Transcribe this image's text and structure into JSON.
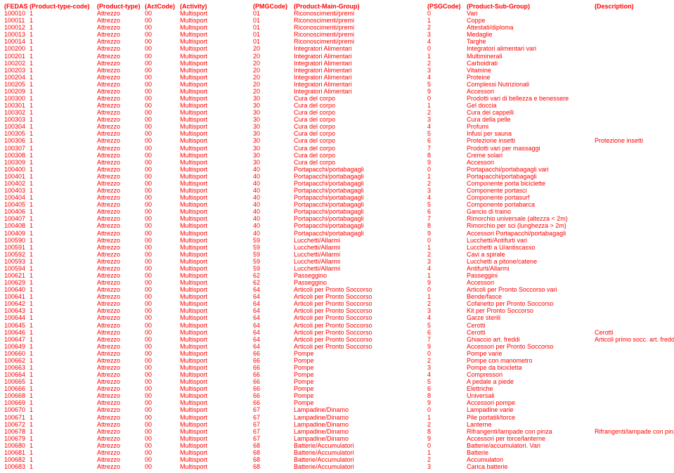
{
  "headers": [
    "(FEDAS)",
    "(Product-type-code)",
    "(Product-type)",
    "(ActCode)",
    "(Activity)",
    "(PMGCode)",
    "(Product-Main-Group)",
    "(PSGCode)",
    "(Product-Sub-Group)",
    "(Description)"
  ],
  "rows": [
    [
      "100010",
      "1",
      "Attrezzo",
      "00",
      "Multisport",
      "01",
      "Riconoscimenti/premi",
      "0",
      "Vari",
      ""
    ],
    [
      "100011",
      "1",
      "Attrezzo",
      "00",
      "Multisport",
      "01",
      "Riconoscimenti/premi",
      "1",
      "Coppe",
      ""
    ],
    [
      "100012",
      "1",
      "Attrezzo",
      "00",
      "Multisport",
      "01",
      "Riconoscimenti/premi",
      "2",
      "Attestati/diploma",
      ""
    ],
    [
      "100013",
      "1",
      "Attrezzo",
      "00",
      "Multisport",
      "01",
      "Riconoscimenti/premi",
      "3",
      "Medaglie",
      ""
    ],
    [
      "100014",
      "1",
      "Attrezzo",
      "00",
      "Multisport",
      "01",
      "Riconoscimenti/premi",
      "4",
      "Targhe",
      ""
    ],
    [
      "100200",
      "1",
      "Attrezzo",
      "00",
      "Multisport",
      "20",
      "Integratori Alimentari",
      "0",
      "Integratori alimentari vari",
      ""
    ],
    [
      "100201",
      "1",
      "Attrezzo",
      "00",
      "Multisport",
      "20",
      "Integratori Alimentari",
      "1",
      "Multiminerali",
      ""
    ],
    [
      "100202",
      "1",
      "Attrezzo",
      "00",
      "Multisport",
      "20",
      "Integratori Alimentari",
      "2",
      "Carboidrati",
      ""
    ],
    [
      "100203",
      "1",
      "Attrezzo",
      "00",
      "Multisport",
      "20",
      "Integratori Alimentari",
      "3",
      "Vitamine",
      ""
    ],
    [
      "100204",
      "1",
      "Attrezzo",
      "00",
      "Multisport",
      "20",
      "Integratori Alimentari",
      "4",
      "Proteine",
      ""
    ],
    [
      "100205",
      "1",
      "Attrezzo",
      "00",
      "Multisport",
      "20",
      "Integratori Alimentari",
      "5",
      "Complessi Nutrizionali",
      ""
    ],
    [
      "100209",
      "1",
      "Attrezzo",
      "00",
      "Multisport",
      "20",
      "Integratori Alimentari",
      "9",
      "Accessori",
      ""
    ],
    [
      "100300",
      "1",
      "Attrezzo",
      "00",
      "Multisport",
      "30",
      "Cura del corpo",
      "0",
      "Prodotti vari di  bellezza e benessere",
      ""
    ],
    [
      "100301",
      "1",
      "Attrezzo",
      "00",
      "Multisport",
      "30",
      "Cura del corpo",
      "1",
      "Gel doccia",
      ""
    ],
    [
      "100302",
      "1",
      "Attrezzo",
      "00",
      "Multisport",
      "30",
      "Cura del corpo",
      "2",
      "Cura dei cappelli",
      ""
    ],
    [
      "100303",
      "1",
      "Attrezzo",
      "00",
      "Multisport",
      "30",
      "Cura del corpo",
      "3",
      "Cura della pelle",
      ""
    ],
    [
      "100304",
      "1",
      "Attrezzo",
      "00",
      "Multisport",
      "30",
      "Cura del corpo",
      "4",
      "Profumi",
      ""
    ],
    [
      "100305",
      "1",
      "Attrezzo",
      "00",
      "Multisport",
      "30",
      "Cura del corpo",
      "5",
      "Infusi per sauna",
      ""
    ],
    [
      "100306",
      "1",
      "Attrezzo",
      "00",
      "Multisport",
      "30",
      "Cura del corpo",
      "6",
      "Protezione insetti",
      "Protezione insetti"
    ],
    [
      "100307",
      "1",
      "Attrezzo",
      "00",
      "Multisport",
      "30",
      "Cura del corpo",
      "7",
      "Prodotti vari per massaggi",
      ""
    ],
    [
      "100308",
      "1",
      "Attrezzo",
      "00",
      "Multisport",
      "30",
      "Cura del corpo",
      "8",
      "Creme solari",
      ""
    ],
    [
      "100309",
      "1",
      "Attrezzo",
      "00",
      "Multisport",
      "30",
      "Cura del corpo",
      "9",
      "Accessori",
      ""
    ],
    [
      "100400",
      "1",
      "Attrezzo",
      "00",
      "Multisport",
      "40",
      "Portapacchi/portabagagli",
      "0",
      "Portapacchi/portabagagli vari",
      ""
    ],
    [
      "100401",
      "1",
      "Attrezzo",
      "00",
      "Multisport",
      "40",
      "Portapacchi/portabagagli",
      "1",
      "Portapacchi/portabagagli",
      ""
    ],
    [
      "100402",
      "1",
      "Attrezzo",
      "00",
      "Multisport",
      "40",
      "Portapacchi/portabagagli",
      "2",
      "Componente porta biciclette",
      ""
    ],
    [
      "100403",
      "1",
      "Attrezzo",
      "00",
      "Multisport",
      "40",
      "Portapacchi/portabagagli",
      "3",
      "Componente portasci",
      ""
    ],
    [
      "100404",
      "1",
      "Attrezzo",
      "00",
      "Multisport",
      "40",
      "Portapacchi/portabagagli",
      "4",
      "Componente portasurf",
      ""
    ],
    [
      "100405",
      "1",
      "Attrezzo",
      "00",
      "Multisport",
      "40",
      "Portapacchi/portabagagli",
      "5",
      "Componente portabarca",
      ""
    ],
    [
      "100406",
      "1",
      "Attrezzo",
      "00",
      "Multisport",
      "40",
      "Portapacchi/portabagagli",
      "6",
      "Gancio di traino",
      ""
    ],
    [
      "100407",
      "1",
      "Attrezzo",
      "00",
      "Multisport",
      "40",
      "Portapacchi/portabagagli",
      "7",
      "Rimorchio universale (altezza < 2m)",
      ""
    ],
    [
      "100408",
      "1",
      "Attrezzo",
      "00",
      "Multisport",
      "40",
      "Portapacchi/portabagagli",
      "8",
      "Rimorchio per sci (lunghezza > 2m)",
      ""
    ],
    [
      "100409",
      "1",
      "Attrezzo",
      "00",
      "Multisport",
      "40",
      "Portapacchi/portabagagli",
      "9",
      "Accessori Portapacchi/portabagagli",
      ""
    ],
    [
      "100590",
      "1",
      "Attrezzo",
      "00",
      "Multisport",
      "59",
      "Lucchetti/Allarmi",
      "0",
      "Lucchetti/Antifurti vari",
      ""
    ],
    [
      "100591",
      "1",
      "Attrezzo",
      "00",
      "Multisport",
      "59",
      "Lucchetti/Allarmi",
      "1",
      "Lucchetti a U/antiscasso",
      ""
    ],
    [
      "100592",
      "1",
      "Attrezzo",
      "00",
      "Multisport",
      "59",
      "Lucchetti/Allarmi",
      "2",
      "Cavi a spirale",
      ""
    ],
    [
      "100593",
      "1",
      "Attrezzo",
      "00",
      "Multisport",
      "59",
      "Lucchetti/Allarmi",
      "3",
      "Lucchetti a pitone/catene",
      ""
    ],
    [
      "100594",
      "1",
      "Attrezzo",
      "00",
      "Multisport",
      "59",
      "Lucchetti/Allarmi",
      "4",
      "Antifurti/Allarmi",
      ""
    ],
    [
      "100621",
      "1",
      "Attrezzo",
      "00",
      "Multisport",
      "62",
      "Passeggino",
      "1",
      "Passeggini",
      ""
    ],
    [
      "100629",
      "1",
      "Attrezzo",
      "00",
      "Multisport",
      "62",
      "Passeggino",
      "9",
      "Accessori",
      ""
    ],
    [
      "100640",
      "1",
      "Attrezzo",
      "00",
      "Multisport",
      "64",
      "Articoli per Pronto Soccorso",
      "0",
      "Articoli per Pronto Soccorso vari",
      ""
    ],
    [
      "100641",
      "1",
      "Attrezzo",
      "00",
      "Multisport",
      "64",
      "Articoli per Pronto Soccorso",
      "1",
      "Bende/fasce",
      ""
    ],
    [
      "100642",
      "1",
      "Attrezzo",
      "00",
      "Multisport",
      "64",
      "Articoli per Pronto Soccorso",
      "2",
      "Cofanetto  per Pronto Soccorso",
      ""
    ],
    [
      "100643",
      "1",
      "Attrezzo",
      "00",
      "Multisport",
      "64",
      "Articoli per Pronto Soccorso",
      "3",
      "Kit per Pronto Soccorso",
      ""
    ],
    [
      "100644",
      "1",
      "Attrezzo",
      "00",
      "Multisport",
      "64",
      "Articoli per Pronto Soccorso",
      "4",
      "Garze sterili",
      ""
    ],
    [
      "100645",
      "1",
      "Attrezzo",
      "00",
      "Multisport",
      "64",
      "Articoli per Pronto Soccorso",
      "5",
      "Cerotti",
      ""
    ],
    [
      "100646",
      "1",
      "Attrezzo",
      "00",
      "Multisport",
      "64",
      "Articoli per Pronto Soccorso",
      "6",
      "Cerotti",
      "Cerotti"
    ],
    [
      "100647",
      "1",
      "Attrezzo",
      "00",
      "Multisport",
      "64",
      "Articoli per Pronto Soccorso",
      "7",
      "Ghiaccio art. freddi",
      "Articoli primo socc. art. freddi"
    ],
    [
      "100649",
      "1",
      "Attrezzo",
      "00",
      "Multisport",
      "64",
      "Articoli per Pronto Soccorso",
      "9",
      "Accessori per Pronto Soccorso",
      ""
    ],
    [
      "100660",
      "1",
      "Attrezzo",
      "00",
      "Multisport",
      "66",
      "Pompe",
      "0",
      "Pompe varie",
      ""
    ],
    [
      "100662",
      "1",
      "Attrezzo",
      "00",
      "Multisport",
      "66",
      "Pompe",
      "2",
      "Pompe con manometro",
      ""
    ],
    [
      "100663",
      "1",
      "Attrezzo",
      "00",
      "Multisport",
      "66",
      "Pompe",
      "3",
      "Pompe da bicicletta",
      ""
    ],
    [
      "100664",
      "1",
      "Attrezzo",
      "00",
      "Multisport",
      "66",
      "Pompe",
      "4",
      "Compressori",
      ""
    ],
    [
      "100665",
      "1",
      "Attrezzo",
      "00",
      "Multisport",
      "66",
      "Pompe",
      "5",
      "A pedale a piede",
      ""
    ],
    [
      "100666",
      "1",
      "Attrezzo",
      "00",
      "Multisport",
      "66",
      "Pompe",
      "6",
      "Elettriche",
      ""
    ],
    [
      "100668",
      "1",
      "Attrezzo",
      "00",
      "Multisport",
      "66",
      "Pompe",
      "8",
      "Universali",
      ""
    ],
    [
      "100669",
      "1",
      "Attrezzo",
      "00",
      "Multisport",
      "66",
      "Pompe",
      "9",
      "Accessori pompe",
      ""
    ],
    [
      "100670",
      "1",
      "Attrezzo",
      "00",
      "Multisport",
      "67",
      "Lampadine/Dinamo",
      "0",
      "Lampadine varie",
      ""
    ],
    [
      "100671",
      "1",
      "Attrezzo",
      "00",
      "Multisport",
      "67",
      "Lampadine/Dinamo",
      "1",
      "Pile portatili/torce",
      ""
    ],
    [
      "100672",
      "1",
      "Attrezzo",
      "00",
      "Multisport",
      "67",
      "Lampadine/Dinamo",
      "2",
      "Lanterne",
      ""
    ],
    [
      "100678",
      "1",
      "Attrezzo",
      "00",
      "Multisport",
      "67",
      "Lampadine/Dinamo",
      "8",
      "Rifrangenti/lampade con pinza",
      "Rifrangenti/lampade con pinza"
    ],
    [
      "100679",
      "1",
      "Attrezzo",
      "00",
      "Multisport",
      "67",
      "Lampadine/Dinamo",
      "9",
      "Accessori per torce/lanterne",
      ""
    ],
    [
      "100680",
      "1",
      "Attrezzo",
      "00",
      "Multisport",
      "68",
      "Batterie/Accumulatori",
      "0",
      "Batterie/accumulatori. Vari",
      ""
    ],
    [
      "100681",
      "1",
      "Attrezzo",
      "00",
      "Multisport",
      "68",
      "Batterie/Accumulatori",
      "1",
      "Batterie",
      ""
    ],
    [
      "100682",
      "1",
      "Attrezzo",
      "00",
      "Multisport",
      "68",
      "Batterie/Accumulatori",
      "2",
      "Accumulatori",
      ""
    ],
    [
      "100683",
      "1",
      "Attrezzo",
      "00",
      "Multisport",
      "68",
      "Batterie/Accumulatori",
      "3",
      "Carica batterie",
      ""
    ]
  ]
}
